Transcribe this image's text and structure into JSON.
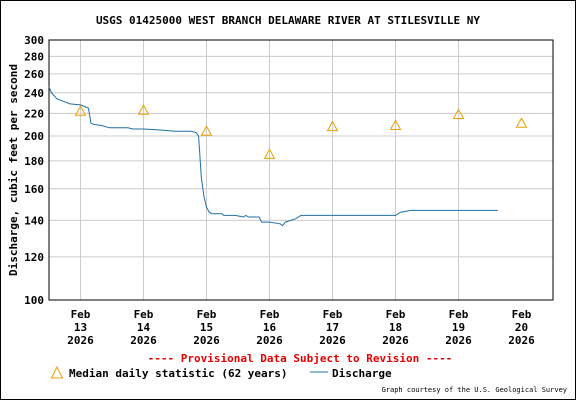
{
  "chart_data": {
    "type": "line",
    "title": "USGS 01425000 WEST BRANCH DELAWARE RIVER AT STILESVILLE NY",
    "ylabel": "Discharge, cubic feet per second",
    "xlabel": "",
    "y_scale": "log",
    "ylim": [
      100,
      300
    ],
    "grid": true,
    "y_ticks": [
      100,
      120,
      140,
      160,
      180,
      200,
      220,
      240,
      260,
      280,
      300
    ],
    "x_ticks": [
      {
        "line1": "Feb",
        "line2": "13",
        "line3": "2026",
        "day": 13
      },
      {
        "line1": "Feb",
        "line2": "14",
        "line3": "2026",
        "day": 14
      },
      {
        "line1": "Feb",
        "line2": "15",
        "line3": "2026",
        "day": 15
      },
      {
        "line1": "Feb",
        "line2": "16",
        "line3": "2026",
        "day": 16
      },
      {
        "line1": "Feb",
        "line2": "17",
        "line3": "2026",
        "day": 17
      },
      {
        "line1": "Feb",
        "line2": "18",
        "line3": "2026",
        "day": 18
      },
      {
        "line1": "Feb",
        "line2": "19",
        "line3": "2026",
        "day": 19
      },
      {
        "line1": "Feb",
        "line2": "20",
        "line3": "2026",
        "day": 20
      }
    ],
    "xlim": [
      "2026-02-12 12:00",
      "2026-02-20 12:00"
    ],
    "series": [
      {
        "name": "Discharge",
        "color": "#1f6fa5",
        "points": [
          [
            "2026-02-12 12:00",
            246
          ],
          [
            "2026-02-12 13:00",
            240
          ],
          [
            "2026-02-12 15:00",
            234
          ],
          [
            "2026-02-12 17:00",
            232
          ],
          [
            "2026-02-12 20:00",
            229
          ],
          [
            "2026-02-13 00:00",
            228
          ],
          [
            "2026-02-13 03:00",
            225
          ],
          [
            "2026-02-13 04:00",
            211
          ],
          [
            "2026-02-13 05:00",
            210
          ],
          [
            "2026-02-13 08:00",
            209
          ],
          [
            "2026-02-13 11:00",
            207
          ],
          [
            "2026-02-13 18:00",
            207
          ],
          [
            "2026-02-13 20:00",
            206
          ],
          [
            "2026-02-14 00:00",
            206
          ],
          [
            "2026-02-14 07:00",
            205
          ],
          [
            "2026-02-14 12:00",
            204
          ],
          [
            "2026-02-14 18:00",
            204
          ],
          [
            "2026-02-14 20:00",
            203
          ],
          [
            "2026-02-14 21:00",
            200
          ],
          [
            "2026-02-14 22:00",
            168
          ],
          [
            "2026-02-14 23:00",
            155
          ],
          [
            "2026-02-15 00:00",
            148
          ],
          [
            "2026-02-15 01:00",
            145
          ],
          [
            "2026-02-15 02:00",
            144
          ],
          [
            "2026-02-15 06:00",
            144
          ],
          [
            "2026-02-15 06:30",
            143
          ],
          [
            "2026-02-15 11:00",
            143
          ],
          [
            "2026-02-15 14:00",
            142
          ],
          [
            "2026-02-15 15:00",
            143
          ],
          [
            "2026-02-15 16:00",
            142
          ],
          [
            "2026-02-15 20:00",
            142
          ],
          [
            "2026-02-15 21:00",
            139
          ],
          [
            "2026-02-16 00:00",
            139
          ],
          [
            "2026-02-16 04:00",
            138
          ],
          [
            "2026-02-16 05:00",
            137
          ],
          [
            "2026-02-16 06:00",
            139
          ],
          [
            "2026-02-16 10:00",
            141
          ],
          [
            "2026-02-16 12:00",
            143
          ],
          [
            "2026-02-16 15:00",
            143
          ],
          [
            "2026-02-17 00:00",
            143
          ],
          [
            "2026-02-18 00:00",
            143
          ],
          [
            "2026-02-18 02:00",
            145
          ],
          [
            "2026-02-18 06:00",
            146
          ],
          [
            "2026-02-19 00:00",
            146
          ],
          [
            "2026-02-19 15:00",
            146
          ]
        ]
      },
      {
        "name": "Median daily statistic (62 years)",
        "marker": "triangle",
        "color": "#e8a000",
        "points": [
          [
            "2026-02-13 00:00",
            222
          ],
          [
            "2026-02-14 00:00",
            223
          ],
          [
            "2026-02-15 00:00",
            204
          ],
          [
            "2026-02-16 00:00",
            185
          ],
          [
            "2026-02-17 00:00",
            208
          ],
          [
            "2026-02-18 00:00",
            209
          ],
          [
            "2026-02-19 00:00",
            219
          ],
          [
            "2026-02-20 00:00",
            211
          ]
        ]
      }
    ]
  },
  "notice": "---- Provisional Data Subject to Revision ----",
  "legend": {
    "median_label": "Median daily statistic (62 years)",
    "discharge_label": "Discharge"
  },
  "credit": "Graph courtesy of the U.S. Geological Survey",
  "colors": {
    "discharge": "#1f6fa5",
    "median": "#e8a000",
    "grid": "#cccccc",
    "notice": "#e60000"
  }
}
